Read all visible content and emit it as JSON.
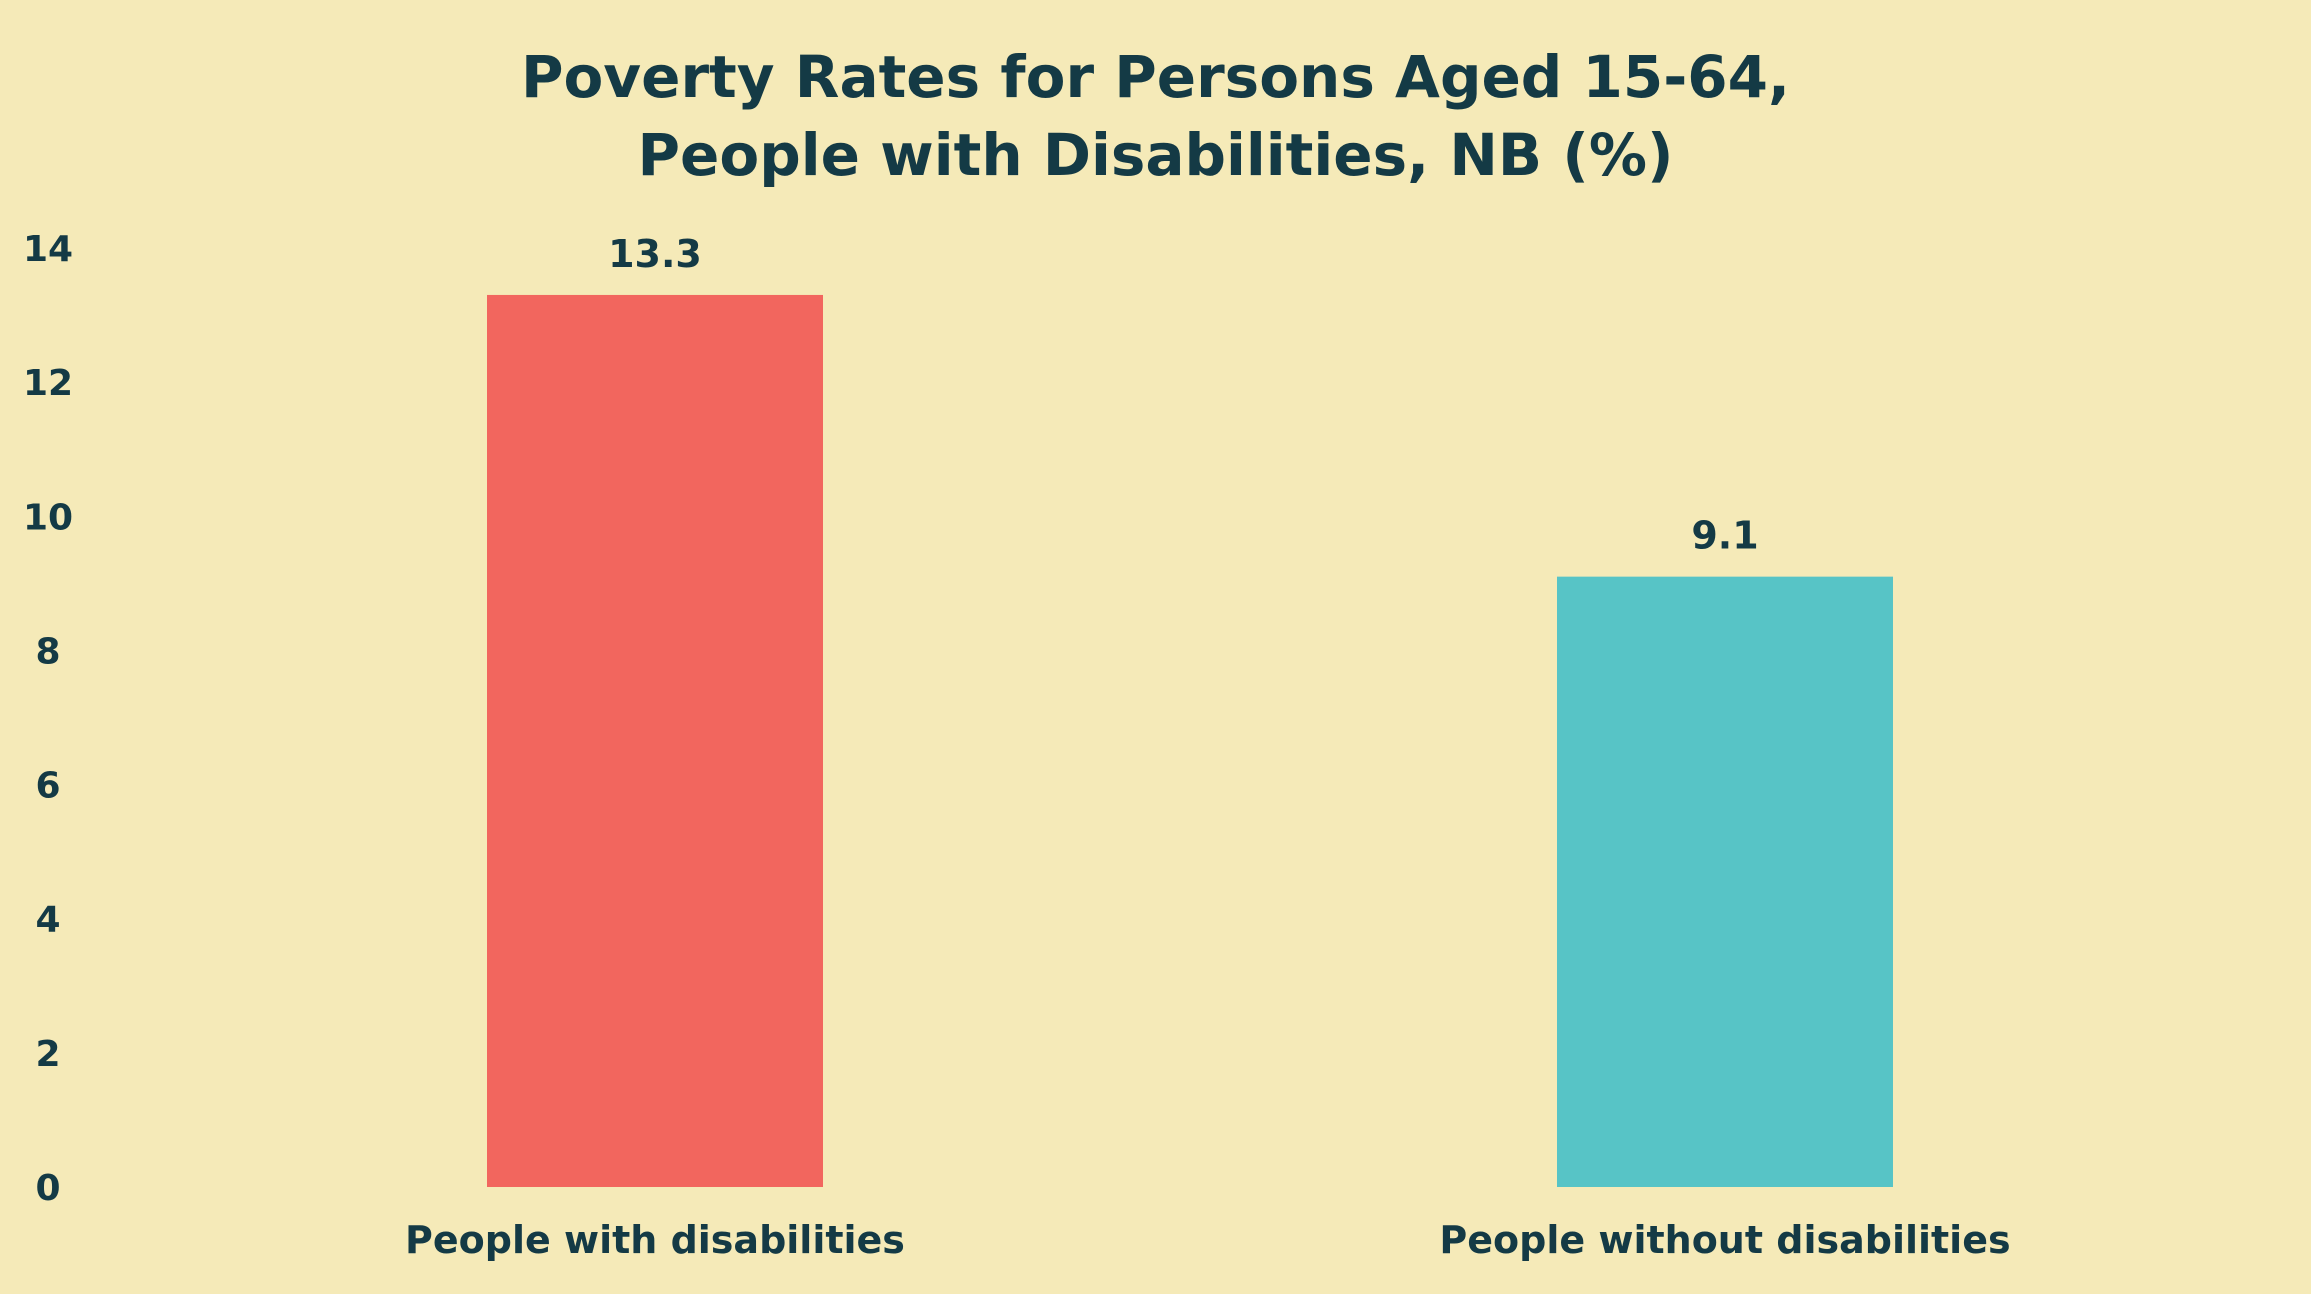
{
  "chart_data": {
    "type": "bar",
    "title_lines": [
      "Poverty Rates for Persons Aged 15-64,",
      "People with Disabilities, NB (%)"
    ],
    "categories": [
      "People with disabilities",
      "People without disabilities"
    ],
    "values": [
      13.3,
      9.1
    ],
    "value_labels": [
      "13.3",
      "9.1"
    ],
    "bar_colors": [
      "#F2665E",
      "#57C4C6"
    ],
    "ylim": [
      0,
      14
    ],
    "yticks": [
      0,
      2,
      4,
      6,
      8,
      10,
      12,
      14
    ],
    "xlabel": "",
    "ylabel": "",
    "grid": false,
    "legend": "none"
  },
  "colors": {
    "background": "#F5EAB8",
    "text": "#143A45"
  }
}
